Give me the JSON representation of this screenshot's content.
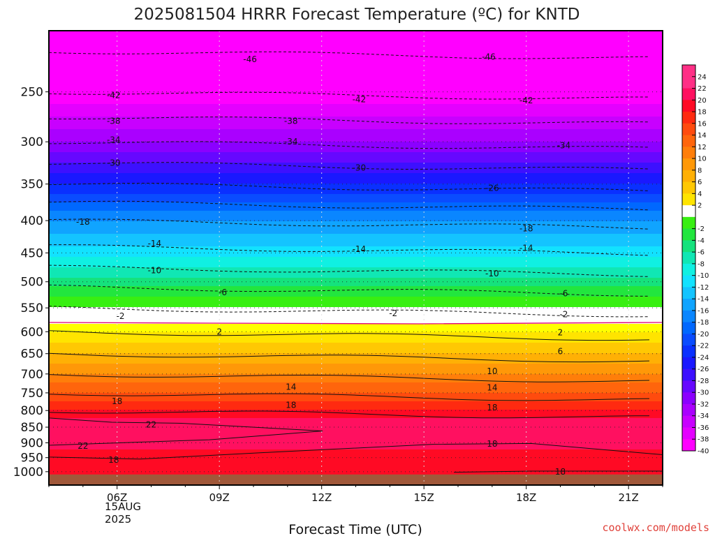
{
  "chart_data": {
    "type": "heatmap",
    "title": "2025081504 HRRR Forecast Temperature (ºC) for KNTD",
    "xlabel": "Forecast Time (UTC)",
    "x_tick_labels": [
      "06Z",
      "09Z",
      "12Z",
      "15Z",
      "18Z",
      "21Z"
    ],
    "x_date_label": [
      "15AUG",
      "2025"
    ],
    "xlim_hours_utc": [
      4,
      22
    ],
    "y_tick_labels": [
      "250",
      "300",
      "350",
      "400",
      "450",
      "500",
      "550",
      "600",
      "650",
      "700",
      "750",
      "800",
      "850",
      "900",
      "950",
      "1000"
    ],
    "yscale": "log-pressure",
    "ylim_hpa": [
      1050,
      200
    ],
    "grid": true,
    "colorbar": {
      "ticks": [
        "24",
        "22",
        "20",
        "18",
        "16",
        "14",
        "12",
        "10",
        "8",
        "6",
        "4",
        "2",
        "-2",
        "-4",
        "-6",
        "-8",
        "-10",
        "-12",
        "-14",
        "-16",
        "-18",
        "-20",
        "-22",
        "-24",
        "-26",
        "-28",
        "-30",
        "-32",
        "-34",
        "-36",
        "-38",
        "-40"
      ],
      "placement": "right"
    },
    "temperature_profile": {
      "pressure_hpa": [
        1000,
        950,
        900,
        850,
        800,
        750,
        700,
        650,
        600,
        575,
        550,
        500,
        450,
        400,
        350,
        300,
        250,
        200
      ],
      "temp_c": [
        19,
        19,
        21,
        22,
        18,
        14,
        10,
        6,
        2,
        0,
        -2,
        -7,
        -13,
        -18,
        -26,
        -34,
        -42,
        -48
      ]
    },
    "contour_labels": [
      {
        "text": "-46",
        "hour": 9.9,
        "hpa": 222
      },
      {
        "text": "-46",
        "hour": 16.9,
        "hpa": 220
      },
      {
        "text": "-42",
        "hour": 5.9,
        "hpa": 253
      },
      {
        "text": "-42",
        "hour": 13.1,
        "hpa": 257
      },
      {
        "text": "-42",
        "hour": 18.0,
        "hpa": 258
      },
      {
        "text": "-38",
        "hour": 5.9,
        "hpa": 278
      },
      {
        "text": "-38",
        "hour": 11.1,
        "hpa": 278
      },
      {
        "text": "-34",
        "hour": 5.9,
        "hpa": 298
      },
      {
        "text": "-34",
        "hour": 11.1,
        "hpa": 300
      },
      {
        "text": "-34",
        "hour": 19.1,
        "hpa": 304
      },
      {
        "text": "-30",
        "hour": 5.9,
        "hpa": 324
      },
      {
        "text": "-30",
        "hour": 13.1,
        "hpa": 330
      },
      {
        "text": "-26",
        "hour": 17.0,
        "hpa": 355
      },
      {
        "text": "-18",
        "hour": 5.0,
        "hpa": 402
      },
      {
        "text": "-18",
        "hour": 18.0,
        "hpa": 412
      },
      {
        "text": "-14",
        "hour": 7.1,
        "hpa": 435
      },
      {
        "text": "-14",
        "hour": 13.1,
        "hpa": 444
      },
      {
        "text": "-14",
        "hour": 18.0,
        "hpa": 442
      },
      {
        "text": "-10",
        "hour": 7.1,
        "hpa": 480
      },
      {
        "text": "-10",
        "hour": 17.0,
        "hpa": 485
      },
      {
        "text": "-6",
        "hour": 9.1,
        "hpa": 520
      },
      {
        "text": "-6",
        "hour": 19.1,
        "hpa": 522
      },
      {
        "text": "-2",
        "hour": 6.1,
        "hpa": 567
      },
      {
        "text": "-2",
        "hour": 14.1,
        "hpa": 561
      },
      {
        "text": "-2",
        "hour": 19.1,
        "hpa": 563
      },
      {
        "text": "2",
        "hour": 9.0,
        "hpa": 600
      },
      {
        "text": "2",
        "hour": 19.0,
        "hpa": 602
      },
      {
        "text": "6",
        "hour": 19.0,
        "hpa": 645
      },
      {
        "text": "10",
        "hour": 17.0,
        "hpa": 693
      },
      {
        "text": "14",
        "hour": 11.1,
        "hpa": 734
      },
      {
        "text": "14",
        "hour": 17.0,
        "hpa": 736
      },
      {
        "text": "18",
        "hour": 6.0,
        "hpa": 773
      },
      {
        "text": "18",
        "hour": 11.1,
        "hpa": 784
      },
      {
        "text": "18",
        "hour": 17.0,
        "hpa": 791
      },
      {
        "text": "22",
        "hour": 7.0,
        "hpa": 842
      },
      {
        "text": "22",
        "hour": 5.0,
        "hpa": 910
      },
      {
        "text": "18",
        "hour": 5.9,
        "hpa": 958
      },
      {
        "text": "18",
        "hour": 17.0,
        "hpa": 904
      },
      {
        "text": "18",
        "hour": 19.0,
        "hpa": 1001
      }
    ],
    "zero_line_hpa": 580
  },
  "credit": "coolwx.com/models",
  "colors": {
    "frame": "#000000",
    "zero_line": "#e0007a",
    "ground": "#a0583a"
  }
}
